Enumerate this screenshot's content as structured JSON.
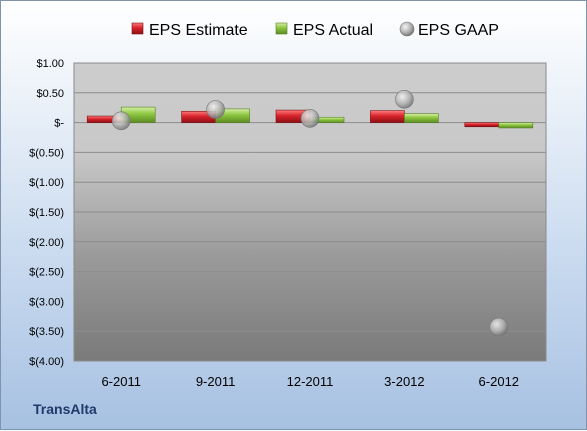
{
  "company": "TransAlta",
  "chart_data": {
    "type": "bar",
    "title": "",
    "xlabel": "",
    "ylabel": "",
    "categories": [
      "6-2011",
      "9-2011",
      "12-2011",
      "3-2012",
      "6-2012"
    ],
    "y_ticks": [
      "$1.00",
      "$0.50",
      "$-",
      "$(0.50)",
      "$(1.00)",
      "$(1.50)",
      "$(2.00)",
      "$(2.50)",
      "$(3.00)",
      "$(3.50)",
      "$(4.00)"
    ],
    "ylim": [
      -4,
      1
    ],
    "legend_position": "top",
    "grid": true,
    "series": [
      {
        "name": "EPS Estimate",
        "marker": "bar",
        "color": "#d6232b",
        "values": [
          0.11,
          0.19,
          0.21,
          0.2,
          -0.07
        ]
      },
      {
        "name": "EPS Actual",
        "marker": "bar",
        "color": "#8cc63f",
        "values": [
          0.26,
          0.23,
          0.09,
          0.15,
          -0.09
        ]
      },
      {
        "name": "EPS GAAP",
        "marker": "circle",
        "color": "#a9a9a9",
        "values": [
          0.03,
          0.22,
          0.07,
          0.39,
          -3.43
        ]
      }
    ]
  }
}
